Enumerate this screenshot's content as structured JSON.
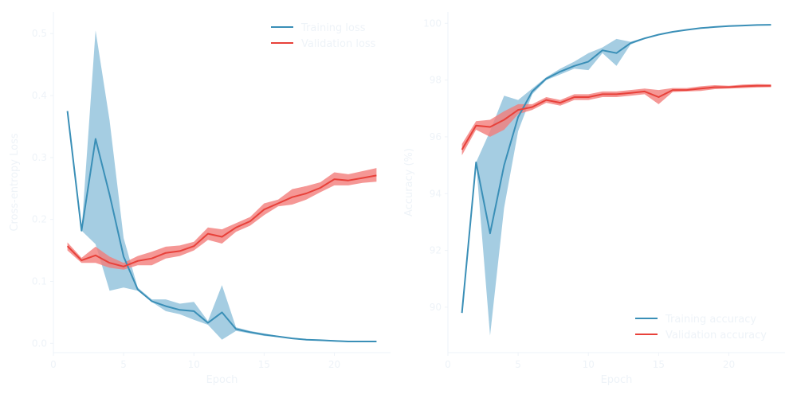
{
  "colors": {
    "training": "#3a8fb7",
    "validation": "#e8413a",
    "training_band": "#8fc0db",
    "validation_band": "#f27d7a",
    "axis": "#eef3f8"
  },
  "chart_data": [
    {
      "type": "line",
      "xlabel": "Epoch",
      "ylabel": "Cross-entropy Loss",
      "xlim": [
        0,
        24
      ],
      "ylim": [
        -0.015,
        0.535
      ],
      "xticks": [
        0,
        5,
        10,
        15,
        20
      ],
      "yticks": [
        0.0,
        0.1,
        0.2,
        0.3,
        0.4,
        0.5
      ],
      "ytick_labels": [
        "0.0",
        "0.1",
        "0.2",
        "0.3",
        "0.4",
        "0.5"
      ],
      "legend_position": "top-right",
      "grid": false,
      "series": [
        {
          "name": "Training loss",
          "color": "training",
          "x": [
            1,
            2,
            3,
            4,
            5,
            6,
            7,
            8,
            9,
            10,
            11,
            12,
            13,
            14,
            15,
            16,
            17,
            18,
            19,
            20,
            21,
            22,
            23
          ],
          "y": [
            0.375,
            0.182,
            0.33,
            0.24,
            0.14,
            0.087,
            0.068,
            0.06,
            0.054,
            0.052,
            0.033,
            0.05,
            0.023,
            0.018,
            0.014,
            0.011,
            0.008,
            0.006,
            0.005,
            0.004,
            0.003,
            0.003,
            0.003
          ],
          "lower": [
            0.375,
            0.182,
            0.16,
            0.085,
            0.09,
            0.085,
            0.067,
            0.052,
            0.047,
            0.038,
            0.03,
            0.006,
            0.02,
            0.016,
            0.012,
            0.01,
            0.007,
            0.005,
            0.004,
            0.003,
            0.002,
            0.002,
            0.002
          ],
          "upper": [
            0.375,
            0.182,
            0.505,
            0.36,
            0.17,
            0.09,
            0.071,
            0.071,
            0.064,
            0.067,
            0.036,
            0.094,
            0.026,
            0.02,
            0.016,
            0.012,
            0.009,
            0.007,
            0.006,
            0.005,
            0.004,
            0.004,
            0.004
          ]
        },
        {
          "name": "Validation loss",
          "color": "validation",
          "x": [
            1,
            2,
            3,
            4,
            5,
            6,
            7,
            8,
            9,
            10,
            11,
            12,
            13,
            14,
            15,
            16,
            17,
            18,
            19,
            20,
            21,
            22,
            23
          ],
          "y": [
            0.157,
            0.134,
            0.142,
            0.13,
            0.124,
            0.133,
            0.137,
            0.146,
            0.149,
            0.157,
            0.177,
            0.172,
            0.187,
            0.197,
            0.216,
            0.226,
            0.236,
            0.242,
            0.251,
            0.265,
            0.263,
            0.267,
            0.271
          ],
          "lower": [
            0.15,
            0.13,
            0.13,
            0.122,
            0.119,
            0.126,
            0.126,
            0.137,
            0.141,
            0.15,
            0.167,
            0.161,
            0.18,
            0.19,
            0.207,
            0.221,
            0.224,
            0.232,
            0.244,
            0.255,
            0.255,
            0.259,
            0.261
          ],
          "upper": [
            0.163,
            0.138,
            0.156,
            0.14,
            0.13,
            0.141,
            0.148,
            0.156,
            0.158,
            0.164,
            0.187,
            0.184,
            0.194,
            0.204,
            0.226,
            0.232,
            0.249,
            0.254,
            0.26,
            0.276,
            0.273,
            0.278,
            0.283
          ]
        }
      ]
    },
    {
      "type": "line",
      "xlabel": "Epoch",
      "ylabel": "Accuracy (%)",
      "xlim": [
        0,
        24
      ],
      "ylim": [
        88.4,
        100.4
      ],
      "xticks": [
        0,
        5,
        10,
        15,
        20
      ],
      "yticks": [
        90,
        92,
        94,
        96,
        98,
        100
      ],
      "ytick_labels": [
        "90",
        "92",
        "94",
        "96",
        "98",
        "100"
      ],
      "legend_position": "bottom-right",
      "grid": false,
      "series": [
        {
          "name": "Training accuracy",
          "color": "training",
          "x": [
            1,
            2,
            3,
            4,
            5,
            6,
            7,
            8,
            9,
            10,
            11,
            12,
            13,
            14,
            15,
            16,
            17,
            18,
            19,
            20,
            21,
            22,
            23
          ],
          "y": [
            89.8,
            95.1,
            92.6,
            95.0,
            96.7,
            97.6,
            98.05,
            98.3,
            98.5,
            98.65,
            99.05,
            98.95,
            99.3,
            99.47,
            99.6,
            99.7,
            99.77,
            99.83,
            99.87,
            99.9,
            99.92,
            99.94,
            99.95
          ],
          "lower": [
            89.8,
            95.1,
            89.0,
            93.5,
            96.2,
            97.5,
            98.0,
            98.2,
            98.4,
            98.35,
            98.95,
            98.5,
            99.25,
            99.45,
            99.58,
            99.68,
            99.76,
            99.82,
            99.86,
            99.89,
            99.91,
            99.93,
            99.94
          ],
          "upper": [
            89.8,
            95.1,
            96.2,
            97.45,
            97.3,
            97.7,
            98.1,
            98.4,
            98.65,
            98.95,
            99.15,
            99.45,
            99.35,
            99.5,
            99.62,
            99.72,
            99.78,
            99.84,
            99.88,
            99.91,
            99.93,
            99.95,
            99.96
          ]
        },
        {
          "name": "Validation accuracy",
          "color": "validation",
          "x": [
            1,
            2,
            3,
            4,
            5,
            6,
            7,
            8,
            9,
            10,
            11,
            12,
            13,
            14,
            15,
            16,
            17,
            18,
            19,
            20,
            21,
            22,
            23
          ],
          "y": [
            95.55,
            96.4,
            96.35,
            96.6,
            96.95,
            97.05,
            97.3,
            97.2,
            97.4,
            97.4,
            97.5,
            97.5,
            97.55,
            97.6,
            97.4,
            97.65,
            97.65,
            97.7,
            97.75,
            97.75,
            97.78,
            97.8,
            97.8
          ],
          "lower": [
            95.35,
            96.25,
            96.0,
            96.25,
            96.8,
            96.95,
            97.2,
            97.1,
            97.3,
            97.3,
            97.4,
            97.4,
            97.45,
            97.5,
            97.15,
            97.58,
            97.6,
            97.62,
            97.68,
            97.7,
            97.72,
            97.74,
            97.75
          ],
          "upper": [
            95.75,
            96.55,
            96.6,
            96.9,
            97.15,
            97.15,
            97.4,
            97.3,
            97.5,
            97.5,
            97.6,
            97.6,
            97.65,
            97.7,
            97.65,
            97.72,
            97.72,
            97.78,
            97.82,
            97.8,
            97.84,
            97.86,
            97.85
          ]
        }
      ]
    }
  ]
}
